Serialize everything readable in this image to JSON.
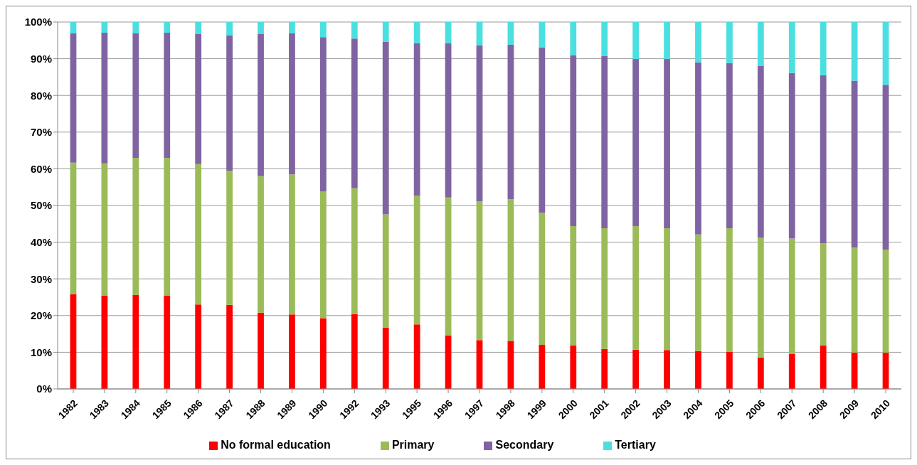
{
  "chart_data": {
    "type": "bar",
    "stacked": true,
    "categories": [
      "1982",
      "1983",
      "1984",
      "1985",
      "1986",
      "1987",
      "1988",
      "1989",
      "1990",
      "1992",
      "1993",
      "1995",
      "1996",
      "1997",
      "1998",
      "1999",
      "2000",
      "2001",
      "2002",
      "2003",
      "2004",
      "2005",
      "2006",
      "2007",
      "2008",
      "2009",
      "2010"
    ],
    "series": [
      {
        "name": "No formal education",
        "color": "#ff0000",
        "values": [
          25.8,
          25.4,
          25.6,
          25.4,
          23.0,
          22.9,
          20.8,
          20.3,
          19.3,
          20.4,
          16.7,
          17.6,
          14.6,
          13.3,
          13.1,
          12.0,
          11.8,
          10.9,
          10.7,
          10.6,
          10.3,
          10.1,
          8.6,
          9.6,
          11.8,
          9.9,
          9.9
        ]
      },
      {
        "name": "Primary",
        "color": "#9bbb59",
        "values": [
          35.9,
          36.1,
          37.4,
          37.6,
          38.3,
          36.6,
          37.2,
          38.2,
          34.5,
          34.3,
          30.9,
          35.0,
          37.6,
          37.8,
          38.6,
          36.0,
          32.6,
          32.9,
          33.7,
          33.2,
          31.8,
          33.7,
          32.6,
          31.4,
          27.9,
          28.6,
          28.1
        ]
      },
      {
        "name": "Secondary",
        "color": "#8064a2",
        "values": [
          35.2,
          35.6,
          33.9,
          34.1,
          35.4,
          36.8,
          38.7,
          38.4,
          42.1,
          40.8,
          47.0,
          41.6,
          42.0,
          42.5,
          42.1,
          45.1,
          46.6,
          47.0,
          45.5,
          46.1,
          46.9,
          45.0,
          46.8,
          45.1,
          45.8,
          45.5,
          44.9
        ]
      },
      {
        "name": "Tertiary",
        "color": "#4bdfe0",
        "values": [
          3.1,
          2.9,
          3.1,
          2.9,
          3.3,
          3.7,
          3.3,
          3.1,
          4.1,
          4.5,
          5.4,
          5.8,
          5.8,
          6.4,
          6.2,
          6.9,
          9.0,
          9.2,
          10.1,
          10.1,
          11.0,
          11.2,
          12.0,
          13.9,
          14.5,
          16.0,
          17.1
        ]
      }
    ],
    "ylim": [
      0,
      100
    ],
    "yticks": [
      {
        "value": 0,
        "label": "0%"
      },
      {
        "value": 10,
        "label": "10%"
      },
      {
        "value": 20,
        "label": "20%"
      },
      {
        "value": 30,
        "label": "30%"
      },
      {
        "value": 40,
        "label": "40%"
      },
      {
        "value": 50,
        "label": "50%"
      },
      {
        "value": 60,
        "label": "60%"
      },
      {
        "value": 70,
        "label": "70%"
      },
      {
        "value": 80,
        "label": "80%"
      },
      {
        "value": 90,
        "label": "90%"
      },
      {
        "value": 100,
        "label": "100%"
      }
    ],
    "grid": "y",
    "legend": "bottom"
  }
}
